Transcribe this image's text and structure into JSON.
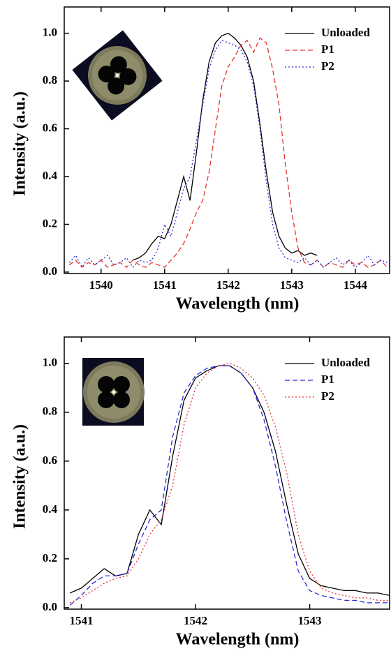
{
  "chart_data": [
    {
      "type": "line",
      "x_label": "Wavelength (nm)",
      "y_label": "Intensity (a.u.)",
      "x": [
        1539.5,
        1539.6,
        1539.7,
        1539.8,
        1539.9,
        1540.0,
        1540.1,
        1540.2,
        1540.3,
        1540.4,
        1540.5,
        1540.6,
        1540.7,
        1540.8,
        1540.9,
        1541.0,
        1541.1,
        1541.2,
        1541.3,
        1541.4,
        1541.5,
        1541.6,
        1541.7,
        1541.8,
        1541.9,
        1542.0,
        1542.1,
        1542.2,
        1542.3,
        1542.4,
        1542.5,
        1542.6,
        1542.7,
        1542.8,
        1542.9,
        1543.0,
        1543.1,
        1543.2,
        1543.3,
        1543.4,
        1543.5,
        1543.6,
        1543.7,
        1543.8,
        1543.9,
        1544.0,
        1544.1,
        1544.2,
        1544.3,
        1544.4,
        1544.5
      ],
      "series": [
        {
          "name": "Unloaded",
          "color": "#000000",
          "dash": "solid",
          "values": [
            null,
            null,
            null,
            null,
            null,
            null,
            null,
            null,
            null,
            null,
            0.05,
            0.06,
            0.08,
            0.12,
            0.15,
            0.14,
            0.2,
            0.3,
            0.4,
            0.3,
            0.5,
            0.72,
            0.88,
            0.96,
            0.99,
            1.0,
            0.98,
            0.95,
            0.9,
            0.8,
            0.62,
            0.42,
            0.25,
            0.15,
            0.1,
            0.08,
            0.09,
            0.07,
            0.08,
            0.07,
            null,
            null,
            null,
            null,
            null,
            null,
            null,
            null,
            null,
            null,
            null
          ]
        },
        {
          "name": "P1",
          "color": "#e8332f",
          "dash": "dashed",
          "values": [
            0.03,
            0.05,
            0.02,
            0.04,
            0.03,
            0.05,
            0.02,
            0.03,
            0.04,
            0.02,
            0.05,
            0.03,
            0.02,
            0.04,
            0.03,
            0.02,
            0.05,
            0.08,
            0.12,
            0.18,
            0.25,
            0.3,
            0.42,
            0.6,
            0.78,
            0.86,
            0.9,
            0.95,
            0.97,
            0.92,
            0.98,
            0.96,
            0.85,
            0.7,
            0.45,
            0.25,
            0.1,
            0.04,
            0.03,
            0.05,
            0.02,
            0.04,
            0.03,
            0.02,
            0.05,
            0.03,
            0.04,
            0.02,
            0.03,
            0.05,
            0.02
          ]
        },
        {
          "name": "P2",
          "color": "#2a2ad8",
          "dash": "dotted",
          "values": [
            0.04,
            0.07,
            0.02,
            0.06,
            0.03,
            0.05,
            0.07,
            0.03,
            0.04,
            0.06,
            0.02,
            0.05,
            0.04,
            0.05,
            0.1,
            0.2,
            0.15,
            0.25,
            0.35,
            0.4,
            0.55,
            0.7,
            0.85,
            0.93,
            0.97,
            0.96,
            0.95,
            0.93,
            0.88,
            0.78,
            0.6,
            0.38,
            0.2,
            0.1,
            0.06,
            0.05,
            0.04,
            0.06,
            0.03,
            0.05,
            0.02,
            0.04,
            0.06,
            0.03,
            0.05,
            0.02,
            0.04,
            0.07,
            0.03,
            0.05,
            0.04
          ]
        }
      ],
      "xlim": [
        1539.42,
        1544.54
      ],
      "xticks": [
        1540,
        1541,
        1542,
        1543,
        1544
      ],
      "ylim": [
        -0.006,
        1.11
      ],
      "yticks": [
        {
          "value": 0,
          "label": "0.0"
        },
        0.2,
        0.4,
        0.6,
        0.8,
        {
          "value": 1,
          "label": "1.0"
        }
      ],
      "legend": "top-right"
    },
    {
      "type": "line",
      "x_label": "Wavelength (nm)",
      "y_label": "Intensity (a.u.)",
      "x": [
        1540.9,
        1541.0,
        1541.1,
        1541.2,
        1541.3,
        1541.4,
        1541.5,
        1541.6,
        1541.7,
        1541.8,
        1541.9,
        1542.0,
        1542.1,
        1542.2,
        1542.3,
        1542.4,
        1542.5,
        1542.6,
        1542.7,
        1542.8,
        1542.9,
        1543.0,
        1543.1,
        1543.2,
        1543.3,
        1543.4,
        1543.5,
        1543.6,
        1543.7
      ],
      "series": [
        {
          "name": "Unloaded",
          "color": "#000000",
          "dash": "solid",
          "values": [
            0.06,
            0.08,
            0.12,
            0.16,
            0.13,
            0.14,
            0.3,
            0.4,
            0.34,
            0.62,
            0.85,
            0.94,
            0.97,
            0.99,
            0.99,
            0.96,
            0.9,
            0.8,
            0.64,
            0.42,
            0.22,
            0.12,
            0.09,
            0.08,
            0.07,
            0.07,
            0.06,
            0.06,
            0.05
          ]
        },
        {
          "name": "P1",
          "color": "#2a2ad8",
          "dash": "dashed",
          "values": [
            0.01,
            0.05,
            0.1,
            0.13,
            0.13,
            0.14,
            0.26,
            0.36,
            0.4,
            0.7,
            0.88,
            0.95,
            0.98,
            0.99,
            0.99,
            0.96,
            0.9,
            0.77,
            0.58,
            0.35,
            0.15,
            0.07,
            0.05,
            0.04,
            0.03,
            0.03,
            0.02,
            0.02,
            0.02
          ]
        },
        {
          "name": "P2",
          "color": "#e8332f",
          "dash": "dotted",
          "values": [
            0.02,
            0.04,
            0.07,
            0.1,
            0.12,
            0.13,
            0.2,
            0.3,
            0.36,
            0.5,
            0.75,
            0.9,
            0.96,
            0.99,
            1.0,
            0.98,
            0.94,
            0.87,
            0.74,
            0.55,
            0.3,
            0.15,
            0.08,
            0.06,
            0.05,
            0.04,
            0.04,
            0.03,
            0.03
          ]
        }
      ],
      "xlim": [
        1540.85,
        1543.7
      ],
      "xticks": [
        1541,
        1542,
        1543
      ],
      "ylim": [
        -0.006,
        1.108
      ],
      "yticks": [
        {
          "value": 0,
          "label": "0.0"
        },
        0.2,
        0.4,
        0.6,
        0.8,
        {
          "value": 1,
          "label": "1.0"
        }
      ],
      "legend": "top-right"
    }
  ]
}
